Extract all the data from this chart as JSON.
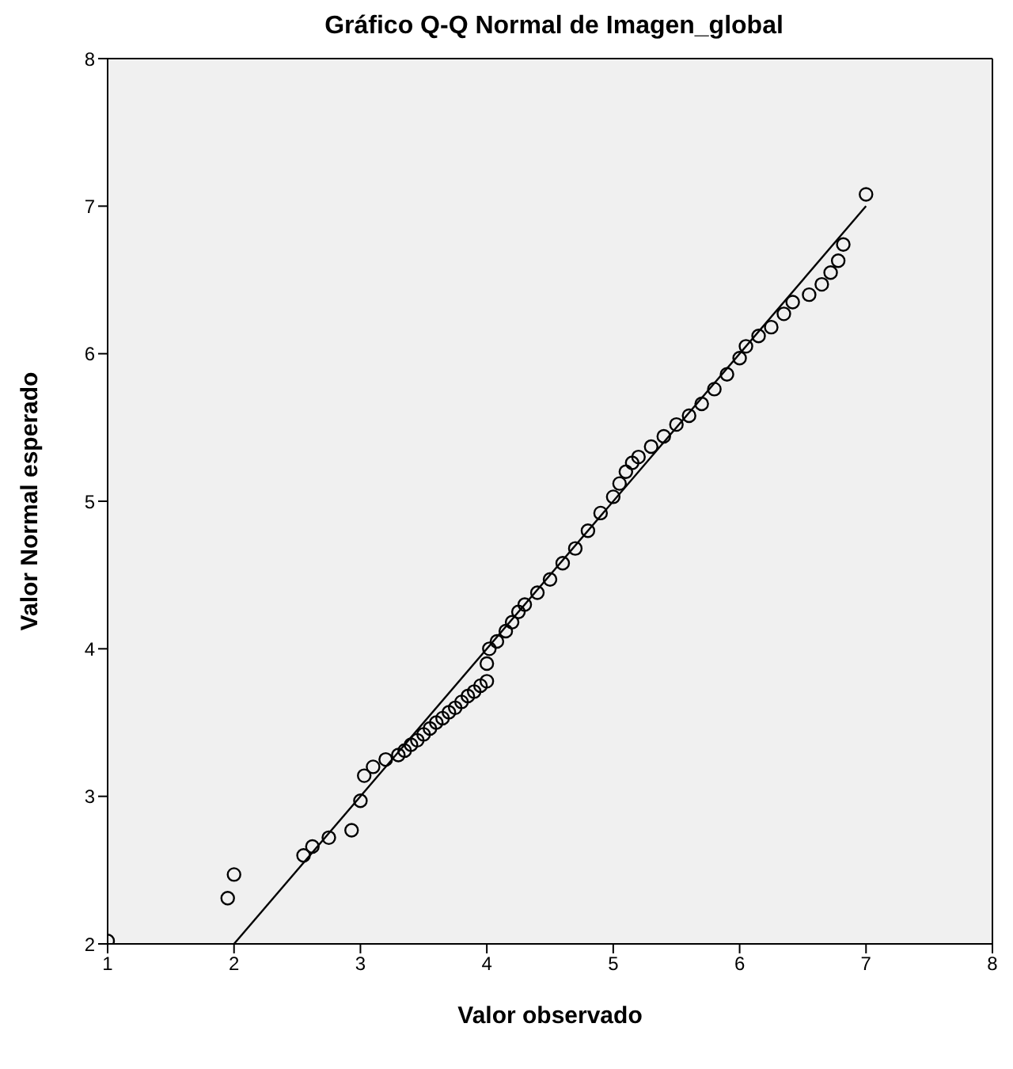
{
  "chart_data": {
    "type": "scatter",
    "title": "Gráfico Q-Q Normal de Imagen_global",
    "xlabel": "Valor observado",
    "ylabel": "Valor Normal esperado",
    "xlim": [
      1,
      8
    ],
    "ylim": [
      2,
      8
    ],
    "xticks": [
      1,
      2,
      3,
      4,
      5,
      6,
      7,
      8
    ],
    "yticks": [
      2,
      3,
      4,
      5,
      6,
      7,
      8
    ],
    "grid": false,
    "series": [
      {
        "marker": "circle",
        "color": "#000000",
        "x": [
          1,
          1.95,
          2,
          2.55,
          2.62,
          2.75,
          2.93,
          3,
          3.03,
          3.1,
          3.2,
          3.3,
          3.35,
          3.4,
          3.45,
          3.5,
          3.55,
          3.6,
          3.65,
          3.7,
          3.75,
          3.8,
          3.85,
          3.9,
          3.95,
          4,
          4,
          4.02,
          4.08,
          4.15,
          4.2,
          4.25,
          4.3,
          4.4,
          4.5,
          4.6,
          4.7,
          4.8,
          4.9,
          5,
          5.05,
          5.1,
          5.15,
          5.2,
          5.3,
          5.4,
          5.5,
          5.6,
          5.7,
          5.8,
          5.9,
          6,
          6.05,
          6.15,
          6.25,
          6.35,
          6.42,
          6.55,
          6.65,
          6.72,
          6.78,
          6.82,
          7
        ],
        "values": [
          2.02,
          2.31,
          2.47,
          2.6,
          2.66,
          2.72,
          2.77,
          2.97,
          3.14,
          3.2,
          3.25,
          3.28,
          3.31,
          3.35,
          3.38,
          3.42,
          3.46,
          3.5,
          3.53,
          3.57,
          3.6,
          3.64,
          3.68,
          3.71,
          3.75,
          3.78,
          3.9,
          4,
          4.05,
          4.12,
          4.18,
          4.25,
          4.3,
          4.38,
          4.47,
          4.58,
          4.68,
          4.8,
          4.92,
          5.03,
          5.12,
          5.2,
          5.26,
          5.3,
          5.37,
          5.44,
          5.52,
          5.58,
          5.66,
          5.76,
          5.86,
          5.97,
          6.05,
          6.12,
          6.18,
          6.27,
          6.35,
          6.4,
          6.47,
          6.55,
          6.63,
          6.74,
          7.08
        ]
      },
      {
        "type": "line",
        "marker": "none",
        "color": "#000000",
        "x": [
          2,
          7
        ],
        "values": [
          2,
          7
        ]
      }
    ]
  }
}
